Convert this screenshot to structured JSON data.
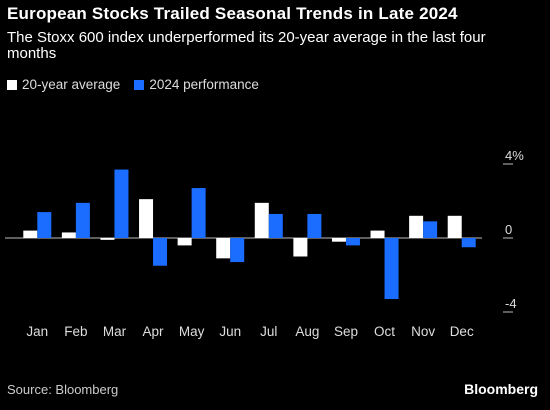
{
  "header": {
    "title": "European Stocks Trailed Seasonal Trends in Late 2024",
    "subtitle": "The Stoxx 600 index underperformed its 20-year average in the last four months"
  },
  "legend": {
    "items": [
      {
        "label": "20-year average",
        "color": "#ffffff"
      },
      {
        "label": "2024 performance",
        "color": "#1a6dff"
      }
    ]
  },
  "footer": {
    "source": "Source: Bloomberg",
    "brand": "Bloomberg"
  },
  "chart_data": {
    "type": "bar",
    "categories": [
      "Jan",
      "Feb",
      "Mar",
      "Apr",
      "May",
      "Jun",
      "Jul",
      "Aug",
      "Sep",
      "Oct",
      "Nov",
      "Dec"
    ],
    "series": [
      {
        "name": "20-year average",
        "color": "#ffffff",
        "values": [
          0.4,
          0.3,
          -0.1,
          2.1,
          -0.4,
          -1.1,
          1.9,
          -1.0,
          -0.2,
          0.4,
          1.2,
          1.2
        ]
      },
      {
        "name": "2024 performance",
        "color": "#1a6dff",
        "values": [
          1.4,
          1.9,
          3.7,
          -1.5,
          2.7,
          -1.3,
          1.3,
          1.3,
          -0.4,
          -3.3,
          0.9,
          -0.5
        ]
      }
    ],
    "yticks": [
      {
        "value": 4,
        "label": "4%"
      },
      {
        "value": 0,
        "label": "0"
      },
      {
        "value": -4,
        "label": "-4"
      }
    ],
    "ylim": [
      -4,
      4
    ],
    "grid": false,
    "legend_position": "top-left"
  }
}
